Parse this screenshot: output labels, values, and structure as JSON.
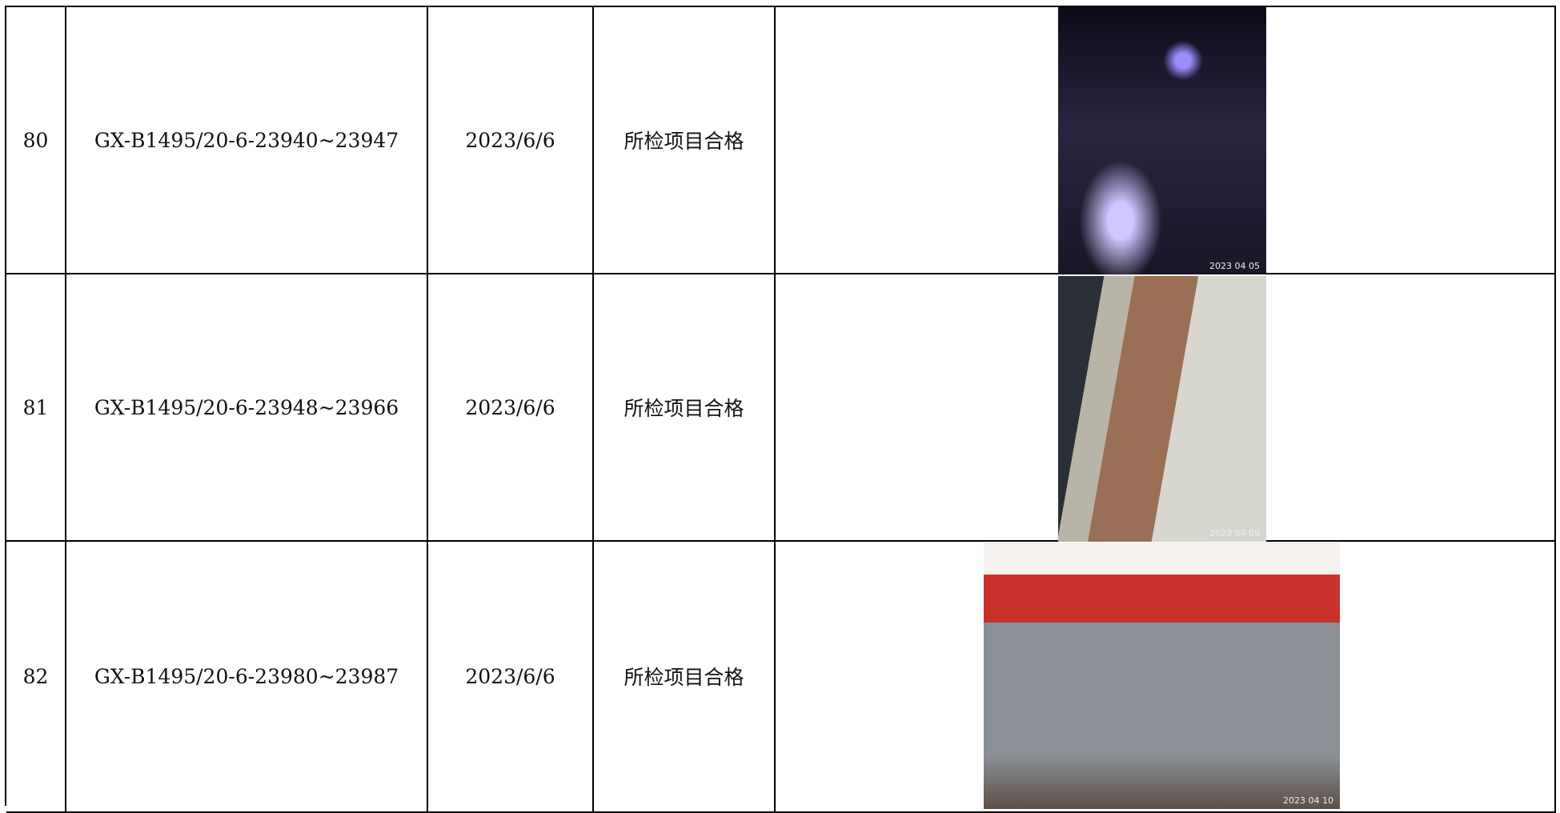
{
  "table": {
    "rows": [
      {
        "no": "80",
        "code": "GX-B1495/20-6-23940~23947",
        "date": "2023/6/6",
        "result": "所检项目合格",
        "photo_stamp": "2023 04 05"
      },
      {
        "no": "81",
        "code": "GX-B1495/20-6-23948~23966",
        "date": "2023/6/6",
        "result": "所检项目合格",
        "photo_stamp": "2023 04 09"
      },
      {
        "no": "82",
        "code": "GX-B1495/20-6-23980~23987",
        "date": "2023/6/6",
        "result": "所检项目合格",
        "photo_stamp": "2023 04 10"
      }
    ]
  }
}
